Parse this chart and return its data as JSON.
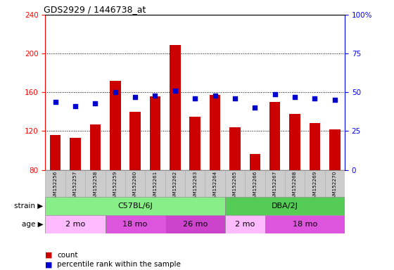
{
  "title": "GDS2929 / 1446738_at",
  "samples": [
    "GSM152256",
    "GSM152257",
    "GSM152258",
    "GSM152259",
    "GSM152260",
    "GSM152261",
    "GSM152262",
    "GSM152263",
    "GSM152264",
    "GSM152265",
    "GSM152266",
    "GSM152267",
    "GSM152268",
    "GSM152269",
    "GSM152270"
  ],
  "counts": [
    116,
    113,
    127,
    172,
    140,
    156,
    209,
    135,
    157,
    124,
    96,
    150,
    138,
    128,
    122
  ],
  "percentile_ranks": [
    44,
    41,
    43,
    50,
    47,
    48,
    51,
    46,
    48,
    46,
    40,
    49,
    47,
    46,
    45
  ],
  "ylim_left": [
    80,
    240
  ],
  "ylim_right": [
    0,
    100
  ],
  "yticks_left": [
    80,
    120,
    160,
    200,
    240
  ],
  "yticks_right": [
    0,
    25,
    50,
    75,
    100
  ],
  "bar_color": "#cc0000",
  "dot_color": "#0000cc",
  "strain_groups": [
    {
      "label": "C57BL/6J",
      "start": 0,
      "end": 9,
      "color": "#88ee88"
    },
    {
      "label": "DBA/2J",
      "start": 9,
      "end": 15,
      "color": "#55cc55"
    }
  ],
  "age_groups": [
    {
      "label": "2 mo",
      "start": 0,
      "end": 3,
      "color": "#ffaaff"
    },
    {
      "label": "18 mo",
      "start": 3,
      "end": 6,
      "color": "#ee66ee"
    },
    {
      "label": "26 mo",
      "start": 6,
      "end": 9,
      "color": "#ee66ee"
    },
    {
      "label": "2 mo",
      "start": 9,
      "end": 11,
      "color": "#ffaaff"
    },
    {
      "label": "18 mo",
      "start": 11,
      "end": 15,
      "color": "#ee66ee"
    }
  ],
  "legend_items": [
    {
      "label": "count",
      "color": "#cc0000"
    },
    {
      "label": "percentile rank within the sample",
      "color": "#0000cc"
    }
  ],
  "background_color": "#ffffff",
  "tick_area_bg": "#cccccc",
  "strain_row_label": "strain",
  "age_row_label": "age"
}
